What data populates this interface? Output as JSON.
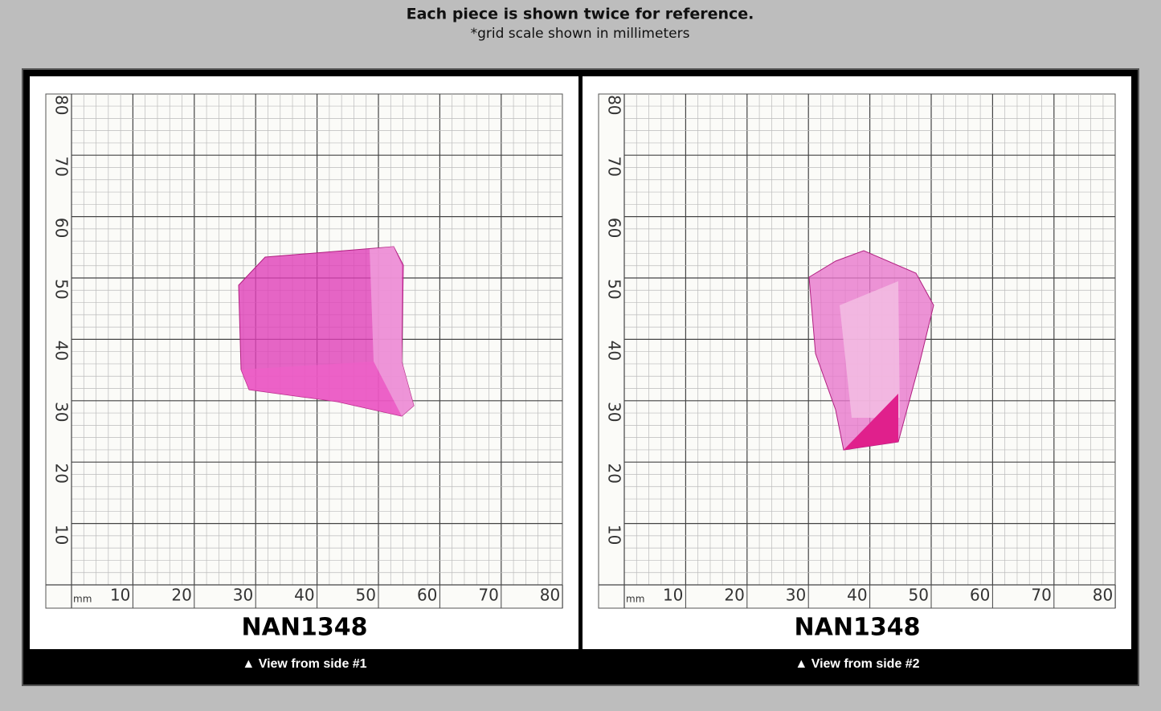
{
  "header": {
    "title": "Each piece is shown twice for reference.",
    "subtitle": "*grid scale shown in millimeters"
  },
  "panels": [
    {
      "unit": "mm",
      "x_labels": [
        "10",
        "20",
        "30",
        "40",
        "50",
        "60",
        "70",
        "80"
      ],
      "y_labels": [
        "10",
        "20",
        "30",
        "40",
        "50",
        "60",
        "70",
        "80"
      ],
      "code": "NAN1348",
      "caption": "▲ View from side #1"
    },
    {
      "unit": "mm",
      "x_labels": [
        "10",
        "20",
        "30",
        "40",
        "50",
        "60",
        "70",
        "80"
      ],
      "y_labels": [
        "10",
        "20",
        "30",
        "40",
        "50",
        "60",
        "70",
        "80"
      ],
      "code": "NAN1348",
      "caption": "▲ View from side #2"
    }
  ]
}
